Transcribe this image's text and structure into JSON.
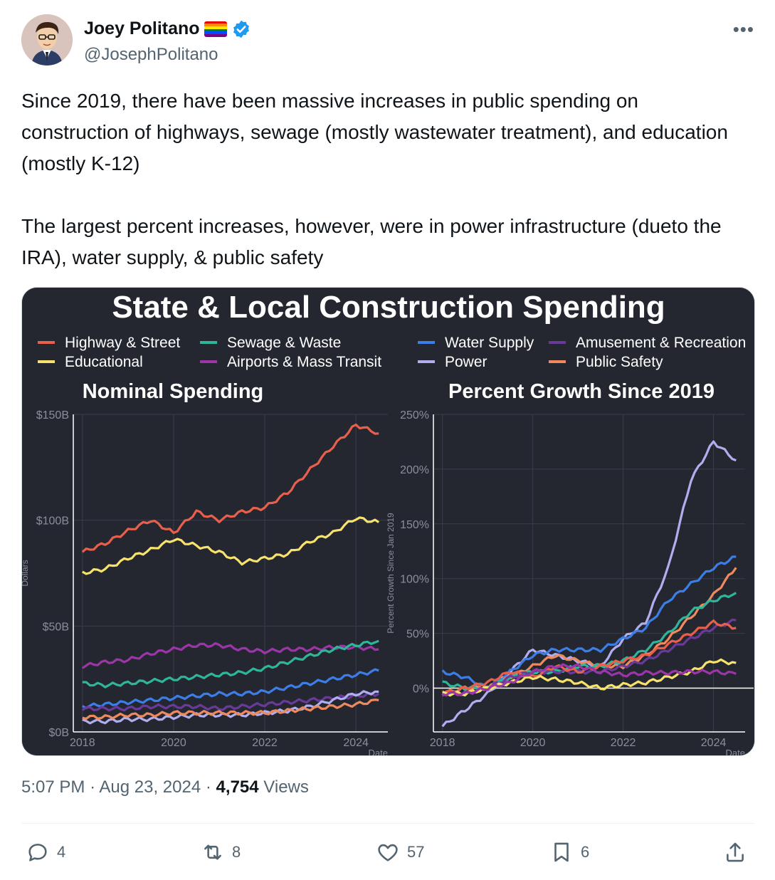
{
  "author": {
    "name": "Joey Politano",
    "handle": "@JosephPolitano"
  },
  "tweet": {
    "paragraph1": "Since 2019, there have been massive increases in public spending on construction of highways, sewage (mostly wastewater treatment), and education (mostly K-12)",
    "paragraph2": "The largest percent increases, however, were in power infrastructure (dueto the IRA), water supply, & public safety"
  },
  "meta": {
    "time": "5:07 PM",
    "date": "Aug 23, 2024",
    "views_count": "4,754",
    "views_label": "Views"
  },
  "actions": {
    "replies": "4",
    "reposts": "8",
    "likes": "57",
    "bookmarks": "6"
  },
  "colors": {
    "highway": "#e8604c",
    "educational": "#f7e26b",
    "sewage": "#2fb59a",
    "airports": "#9b35a8",
    "water": "#3c7ee8",
    "power": "#b1aef0",
    "amusement": "#6a3a9a",
    "safety": "#ef8a5e",
    "chart_bg": "#242730"
  },
  "chart_data": [
    {
      "type": "line",
      "title": "State & Local Construction Spending",
      "subtitle": "Nominal Spending",
      "ylabel": "Dollars",
      "xlabel": "Date",
      "ylim": [
        0,
        150
      ],
      "yticks": [
        "$0B",
        "$50B",
        "$100B",
        "$150B"
      ],
      "xticks": [
        "2018",
        "2020",
        "2022",
        "2024"
      ],
      "legend": [
        "Highway & Street",
        "Educational",
        "Sewage & Waste",
        "Airports & Mass Transit",
        "Water Supply",
        "Power",
        "Amusement & Recreation",
        "Public Safety"
      ],
      "x": [
        2018.0,
        2018.5,
        2019.0,
        2019.5,
        2020.0,
        2020.5,
        2021.0,
        2021.5,
        2022.0,
        2022.5,
        2023.0,
        2023.5,
        2024.0,
        2024.5
      ],
      "series": [
        {
          "name": "Highway & Street",
          "key": "highway",
          "values": [
            85,
            89,
            95,
            100,
            94,
            104,
            100,
            104,
            106,
            113,
            124,
            135,
            145,
            141
          ]
        },
        {
          "name": "Educational",
          "key": "educational",
          "values": [
            75,
            77,
            82,
            86,
            91,
            88,
            85,
            80,
            82,
            84,
            90,
            94,
            101,
            99
          ]
        },
        {
          "name": "Airports & Mass Transit",
          "key": "airports",
          "values": [
            31,
            33,
            34,
            37,
            39,
            41,
            41,
            39,
            38,
            39,
            39,
            40,
            40,
            39
          ]
        },
        {
          "name": "Sewage & Waste",
          "key": "sewage",
          "values": [
            23,
            22,
            23,
            24,
            25,
            26,
            27,
            28,
            30,
            33,
            36,
            39,
            41,
            43
          ]
        },
        {
          "name": "Water Supply",
          "key": "water",
          "values": [
            12,
            13,
            14,
            15,
            16,
            17,
            18,
            18,
            19,
            21,
            23,
            25,
            27,
            29
          ]
        },
        {
          "name": "Amusement & Recreation",
          "key": "amusement",
          "values": [
            11,
            11,
            11,
            12,
            12,
            12,
            11,
            12,
            13,
            14,
            15,
            16,
            17,
            18
          ]
        },
        {
          "name": "Power",
          "key": "power",
          "values": [
            5,
            5,
            6,
            6,
            7,
            8,
            8,
            8,
            9,
            10,
            12,
            15,
            18,
            19
          ]
        },
        {
          "name": "Public Safety",
          "key": "safety",
          "values": [
            7,
            7,
            8,
            8,
            9,
            9,
            9,
            9,
            9,
            10,
            11,
            12,
            13,
            15
          ]
        }
      ]
    },
    {
      "type": "line",
      "subtitle": "Percent Growth Since 2019",
      "ylabel": "Percent Growth Since Jan 2019",
      "xlabel": "Date",
      "ylim": [
        -40,
        250
      ],
      "yticks": [
        "0%",
        "50%",
        "100%",
        "150%",
        "200%",
        "250%"
      ],
      "xticks": [
        "2018",
        "2020",
        "2022",
        "2024"
      ],
      "x": [
        2018.0,
        2018.5,
        2019.0,
        2019.5,
        2020.0,
        2020.5,
        2021.0,
        2021.5,
        2022.0,
        2022.5,
        2023.0,
        2023.5,
        2024.0,
        2024.5
      ],
      "series": [
        {
          "name": "Power",
          "key": "power",
          "values": [
            -35,
            -20,
            -5,
            15,
            35,
            30,
            25,
            20,
            45,
            60,
            110,
            190,
            225,
            208
          ]
        },
        {
          "name": "Water Supply",
          "key": "water",
          "values": [
            15,
            10,
            0,
            15,
            30,
            35,
            35,
            35,
            45,
            55,
            80,
            95,
            110,
            120
          ]
        },
        {
          "name": "Public Safety",
          "key": "safety",
          "values": [
            -5,
            0,
            0,
            10,
            20,
            30,
            25,
            20,
            20,
            30,
            45,
            65,
            85,
            110
          ]
        },
        {
          "name": "Sewage & Waste",
          "key": "sewage",
          "values": [
            5,
            0,
            0,
            10,
            15,
            15,
            20,
            20,
            25,
            35,
            50,
            70,
            80,
            87
          ]
        },
        {
          "name": "Amusement & Recreation",
          "key": "amusement",
          "values": [
            -5,
            -5,
            0,
            10,
            15,
            15,
            15,
            15,
            20,
            25,
            35,
            45,
            55,
            62
          ]
        },
        {
          "name": "Highway & Street",
          "key": "highway",
          "values": [
            -5,
            0,
            5,
            15,
            10,
            20,
            15,
            20,
            25,
            30,
            40,
            50,
            60,
            55
          ]
        },
        {
          "name": "Educational",
          "key": "educational",
          "values": [
            -5,
            -5,
            0,
            5,
            10,
            8,
            5,
            0,
            3,
            5,
            10,
            15,
            25,
            23
          ]
        },
        {
          "name": "Airports & Mass Transit",
          "key": "airports",
          "values": [
            -5,
            -5,
            0,
            5,
            15,
            20,
            20,
            15,
            12,
            14,
            14,
            15,
            15,
            13
          ]
        }
      ]
    }
  ]
}
